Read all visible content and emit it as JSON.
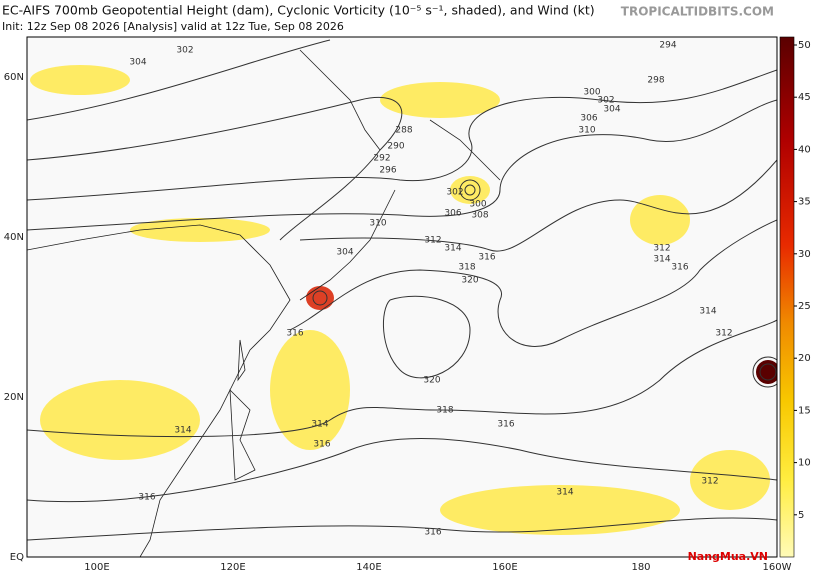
{
  "header": {
    "title": "EC-AIFS 700mb Geopotential Height (dam), Cyclonic Vorticity (10⁻⁵ s⁻¹, shaded), and Wind (kt)",
    "subtitle": "Init: 12z Sep 08 2026   [Analysis]   valid at 12z Tue, Sep 08 2026",
    "credit": "TROPICALTIDBITS.COM"
  },
  "map": {
    "lat_labels": [
      "60N",
      "40N",
      "20N",
      "EQ"
    ],
    "lon_labels": [
      "100E",
      "120E",
      "140E",
      "160E",
      "180",
      "160W"
    ],
    "contour_labels": [
      "302",
      "304",
      "294",
      "298",
      "300",
      "302",
      "304",
      "306",
      "310",
      "288",
      "290",
      "292",
      "296",
      "302",
      "300",
      "306",
      "308",
      "304",
      "310",
      "312",
      "314",
      "316",
      "318",
      "320",
      "312",
      "314",
      "316",
      "316",
      "312",
      "314",
      "320",
      "318",
      "316",
      "314",
      "316",
      "316",
      "314",
      "316",
      "314",
      "312"
    ]
  },
  "colorbar": {
    "ticks": [
      50,
      45,
      40,
      35,
      30,
      25,
      20,
      15,
      10,
      5
    ]
  },
  "watermark": "NangMua.VN"
}
